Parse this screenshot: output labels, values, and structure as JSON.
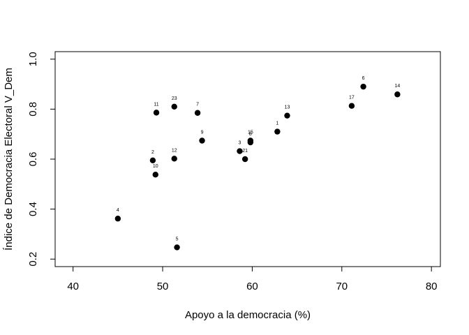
{
  "chart_data": {
    "type": "scatter",
    "title": "",
    "xlabel": "Apoyo a la democracia (%)",
    "ylabel": "Índice de Democracia Electoral V_Dem",
    "xlim": [
      38,
      81
    ],
    "ylim": [
      0.17,
      1.03
    ],
    "xticks": [
      40,
      50,
      60,
      70,
      80
    ],
    "yticks": [
      0.2,
      0.4,
      0.6,
      0.8,
      1.0
    ],
    "ytick_labels": [
      "0.2",
      "0.4",
      "0.6",
      "0.8",
      "1.0"
    ],
    "grid": false,
    "legend": "none",
    "marker_color": "#000000",
    "points": [
      {
        "label": "1",
        "x": 62.8,
        "y": 0.71
      },
      {
        "label": "2",
        "x": 48.9,
        "y": 0.595
      },
      {
        "label": "3",
        "x": 58.6,
        "y": 0.632
      },
      {
        "label": "4",
        "x": 45.0,
        "y": 0.362
      },
      {
        "label": "5",
        "x": 51.6,
        "y": 0.247
      },
      {
        "label": "6",
        "x": 72.4,
        "y": 0.89
      },
      {
        "label": "7",
        "x": 53.9,
        "y": 0.785
      },
      {
        "label": "8",
        "x": 59.8,
        "y": 0.667
      },
      {
        "label": "9",
        "x": 54.4,
        "y": 0.674
      },
      {
        "label": "10",
        "x": 49.2,
        "y": 0.538
      },
      {
        "label": "11",
        "x": 49.3,
        "y": 0.786
      },
      {
        "label": "12",
        "x": 51.3,
        "y": 0.602
      },
      {
        "label": "13",
        "x": 63.9,
        "y": 0.774
      },
      {
        "label": "14",
        "x": 76.2,
        "y": 0.859
      },
      {
        "label": "15",
        "x": 59.8,
        "y": 0.674
      },
      {
        "label": "17",
        "x": 71.1,
        "y": 0.813
      },
      {
        "label": "21",
        "x": 59.2,
        "y": 0.6
      },
      {
        "label": "23",
        "x": 51.3,
        "y": 0.81
      }
    ]
  }
}
